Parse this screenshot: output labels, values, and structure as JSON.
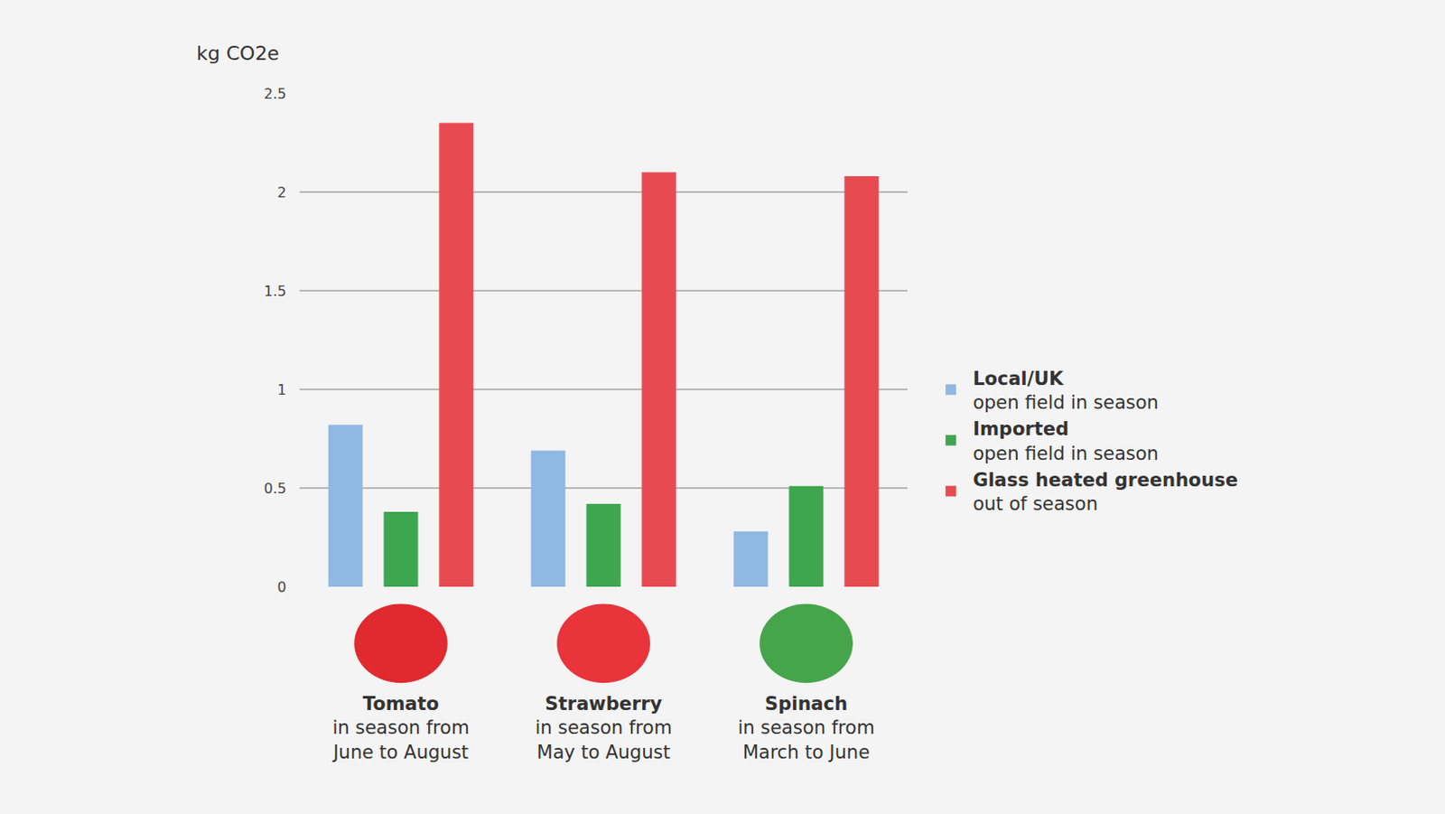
{
  "chart_data": {
    "type": "bar",
    "ylabel": "kg CO2e",
    "categories": [
      "Tomato",
      "Strawberry",
      "Spinach"
    ],
    "category_notes": [
      [
        "in season from",
        "June to August"
      ],
      [
        "in season from",
        "May to August"
      ],
      [
        "in season from",
        "March to June"
      ]
    ],
    "series": [
      {
        "name": "Local/UK",
        "description": "open field in season",
        "color": "#8fb8e3",
        "values": [
          0.82,
          0.69,
          0.28
        ]
      },
      {
        "name": "Imported",
        "description": "open field in season",
        "color": "#3ea64e",
        "values": [
          0.38,
          0.42,
          0.51
        ]
      },
      {
        "name": "Glass heated greenhouse",
        "description": "out of season",
        "color": "#e84a52",
        "values": [
          2.35,
          2.1,
          2.08
        ]
      }
    ],
    "ylim": [
      0,
      2.5
    ],
    "yticks": [
      0,
      0.5,
      1,
      1.5,
      2,
      2.5
    ],
    "grid": true,
    "legend": "right"
  }
}
